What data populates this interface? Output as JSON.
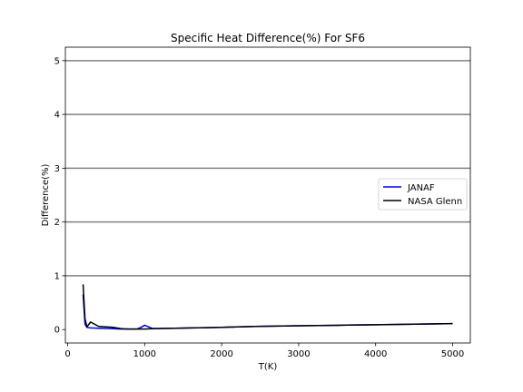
{
  "chart_data": {
    "type": "line",
    "title": "Specific Heat Difference(%) For SF6",
    "xlabel": "T(K)",
    "ylabel": "Difference(%)",
    "xlim": [
      -30,
      5230
    ],
    "ylim": [
      -0.25,
      5.25
    ],
    "xticks": [
      0,
      1000,
      2000,
      3000,
      4000,
      5000
    ],
    "yticks": [
      0,
      1,
      2,
      3,
      4,
      5
    ],
    "hgrid_lines": [
      1,
      2,
      3,
      4,
      5
    ],
    "legend_position": "center-right",
    "series": [
      {
        "name": "JANAF",
        "color": "#0000ff",
        "x": [
          200,
          225,
          250,
          298,
          400,
          500,
          600,
          700,
          800,
          900,
          950,
          1000,
          1050,
          1100,
          1200,
          1400,
          1600,
          1800,
          2000,
          2200,
          2500,
          3000,
          3500,
          4000,
          4500,
          5000
        ],
        "y": [
          0.65,
          0.1,
          0.04,
          0.03,
          0.025,
          0.02,
          0.015,
          0.01,
          0.01,
          0.01,
          0.04,
          0.08,
          0.05,
          0.02,
          0.02,
          0.025,
          0.03,
          0.035,
          0.04,
          0.05,
          0.06,
          0.07,
          0.08,
          0.09,
          0.1,
          0.11
        ]
      },
      {
        "name": "NASA Glenn",
        "color": "#000000",
        "x": [
          200,
          225,
          250,
          298,
          400,
          500,
          600,
          700,
          800,
          900,
          1000,
          1100,
          1200,
          1400,
          1600,
          1800,
          2000,
          2200,
          2500,
          3000,
          3500,
          4000,
          4500,
          5000
        ],
        "y": [
          0.84,
          0.2,
          0.05,
          0.14,
          0.06,
          0.05,
          0.04,
          0.015,
          0.01,
          0.01,
          0.01,
          0.015,
          0.02,
          0.025,
          0.03,
          0.035,
          0.04,
          0.05,
          0.06,
          0.07,
          0.08,
          0.09,
          0.1,
          0.11
        ]
      }
    ]
  }
}
